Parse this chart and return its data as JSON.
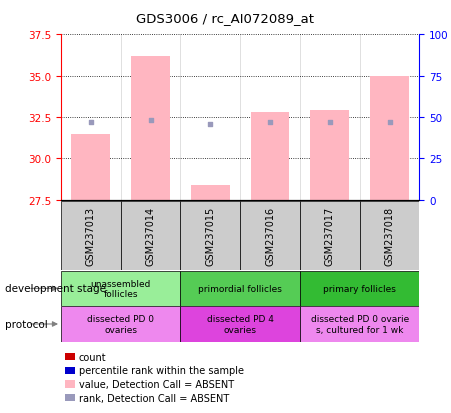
{
  "title": "GDS3006 / rc_AI072089_at",
  "samples": [
    "GSM237013",
    "GSM237014",
    "GSM237015",
    "GSM237016",
    "GSM237017",
    "GSM237018"
  ],
  "bar_values": [
    31.5,
    36.2,
    28.4,
    32.8,
    32.9,
    35.0
  ],
  "rank_values": [
    47,
    48,
    46,
    47,
    47,
    47
  ],
  "ylim_left": [
    27.5,
    37.5
  ],
  "ylim_right": [
    0,
    100
  ],
  "yticks_left": [
    27.5,
    30,
    32.5,
    35,
    37.5
  ],
  "yticks_right": [
    0,
    25,
    50,
    75,
    100
  ],
  "bar_color": "#FFB6C1",
  "rank_color": "#9999BB",
  "sample_box_color": "#CCCCCC",
  "development_stage_groups": [
    {
      "label": "unassembled\nfollicles",
      "span": [
        0,
        2
      ],
      "color": "#99EE99"
    },
    {
      "label": "primordial follicles",
      "span": [
        2,
        4
      ],
      "color": "#55CC55"
    },
    {
      "label": "primary follicles",
      "span": [
        4,
        6
      ],
      "color": "#33BB33"
    }
  ],
  "protocol_groups": [
    {
      "label": "dissected PD 0\novaries",
      "span": [
        0,
        2
      ],
      "color": "#EE88EE"
    },
    {
      "label": "dissected PD 4\novaries",
      "span": [
        2,
        4
      ],
      "color": "#DD44DD"
    },
    {
      "label": "dissected PD 0 ovarie\ns, cultured for 1 wk",
      "span": [
        4,
        6
      ],
      "color": "#EE88EE"
    }
  ],
  "legend_items": [
    {
      "label": "count",
      "color": "#CC0000"
    },
    {
      "label": "percentile rank within the sample",
      "color": "#0000CC"
    },
    {
      "label": "value, Detection Call = ABSENT",
      "color": "#FFB6C1"
    },
    {
      "label": "rank, Detection Call = ABSENT",
      "color": "#9999BB"
    }
  ]
}
